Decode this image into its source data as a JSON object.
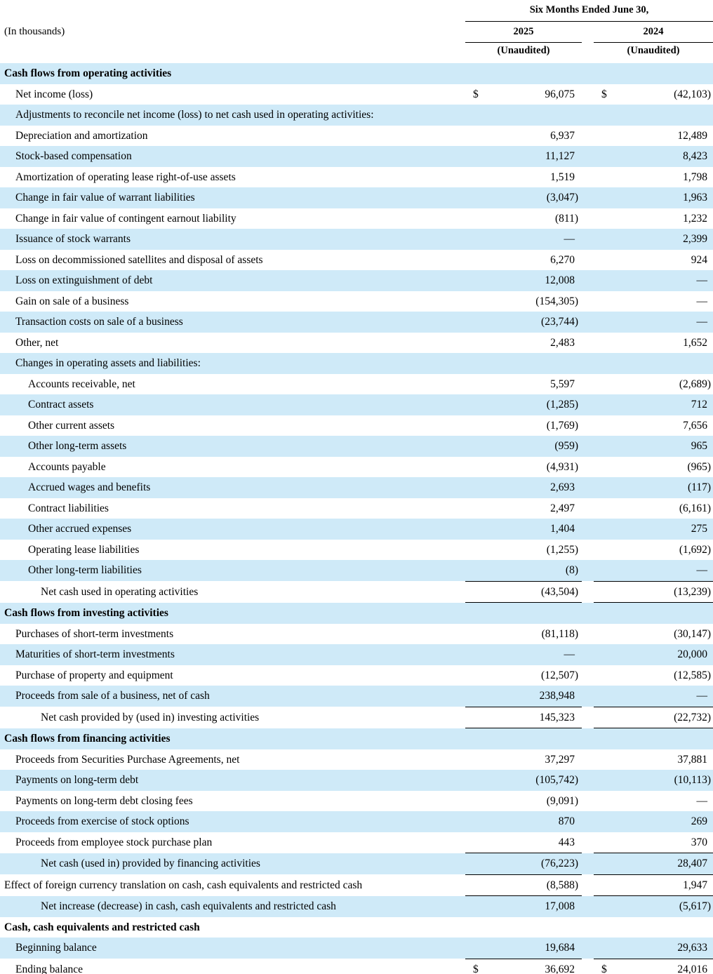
{
  "meta": {
    "in_thousands_label": "(In thousands)"
  },
  "colors": {
    "row_shade": "#cfeaf8",
    "rule": "#000000",
    "text": "#000000",
    "background": "#ffffff"
  },
  "header": {
    "period_title": "Six Months Ended June 30,",
    "columns": [
      {
        "year": "2025",
        "note": "(Unaudited)"
      },
      {
        "year": "2024",
        "note": "(Unaudited)"
      }
    ]
  },
  "table": {
    "rows": [
      {
        "label": "Cash flows from operating activities",
        "indent": 0,
        "bold": true,
        "d1": "",
        "v1": "",
        "d2": "",
        "v2": "",
        "underline": false
      },
      {
        "label": "Net income (loss)",
        "indent": 1,
        "bold": false,
        "d1": "$",
        "v1": "96,075",
        "d2": "$",
        "v2": "(42,103)",
        "underline": false
      },
      {
        "label": "Adjustments to reconcile net income (loss) to net cash used in operating activities:",
        "indent": 1,
        "bold": false,
        "d1": "",
        "v1": "",
        "d2": "",
        "v2": "",
        "underline": false
      },
      {
        "label": "Depreciation and amortization",
        "indent": 1,
        "bold": false,
        "d1": "",
        "v1": "6,937",
        "d2": "",
        "v2": "12,489",
        "underline": false
      },
      {
        "label": "Stock-based compensation",
        "indent": 1,
        "bold": false,
        "d1": "",
        "v1": "11,127",
        "d2": "",
        "v2": "8,423",
        "underline": false
      },
      {
        "label": "Amortization of operating lease right-of-use assets",
        "indent": 1,
        "bold": false,
        "d1": "",
        "v1": "1,519",
        "d2": "",
        "v2": "1,798",
        "underline": false
      },
      {
        "label": "Change in fair value of warrant liabilities",
        "indent": 1,
        "bold": false,
        "d1": "",
        "v1": "(3,047)",
        "d2": "",
        "v2": "1,963",
        "underline": false
      },
      {
        "label": "Change in fair value of contingent earnout liability",
        "indent": 1,
        "bold": false,
        "d1": "",
        "v1": "(811)",
        "d2": "",
        "v2": "1,232",
        "underline": false
      },
      {
        "label": "Issuance of stock warrants",
        "indent": 1,
        "bold": false,
        "d1": "",
        "v1": "—",
        "d2": "",
        "v2": "2,399",
        "underline": false
      },
      {
        "label": "Loss on decommissioned satellites and disposal of assets",
        "indent": 1,
        "bold": false,
        "d1": "",
        "v1": "6,270",
        "d2": "",
        "v2": "924",
        "underline": false
      },
      {
        "label": "Loss on extinguishment of debt",
        "indent": 1,
        "bold": false,
        "d1": "",
        "v1": "12,008",
        "d2": "",
        "v2": "—",
        "underline": false
      },
      {
        "label": "Gain on sale of a business",
        "indent": 1,
        "bold": false,
        "d1": "",
        "v1": "(154,305)",
        "d2": "",
        "v2": "—",
        "underline": false
      },
      {
        "label": "Transaction costs on sale of a business",
        "indent": 1,
        "bold": false,
        "d1": "",
        "v1": "(23,744)",
        "d2": "",
        "v2": "—",
        "underline": false
      },
      {
        "label": "Other, net",
        "indent": 1,
        "bold": false,
        "d1": "",
        "v1": "2,483",
        "d2": "",
        "v2": "1,652",
        "underline": false
      },
      {
        "label": "Changes in operating assets and liabilities:",
        "indent": 1,
        "bold": false,
        "d1": "",
        "v1": "",
        "d2": "",
        "v2": "",
        "underline": false
      },
      {
        "label": "Accounts receivable, net",
        "indent": 2,
        "bold": false,
        "d1": "",
        "v1": "5,597",
        "d2": "",
        "v2": "(2,689)",
        "underline": false
      },
      {
        "label": "Contract assets",
        "indent": 2,
        "bold": false,
        "d1": "",
        "v1": "(1,285)",
        "d2": "",
        "v2": "712",
        "underline": false
      },
      {
        "label": "Other current assets",
        "indent": 2,
        "bold": false,
        "d1": "",
        "v1": "(1,769)",
        "d2": "",
        "v2": "7,656",
        "underline": false
      },
      {
        "label": "Other long-term assets",
        "indent": 2,
        "bold": false,
        "d1": "",
        "v1": "(959)",
        "d2": "",
        "v2": "965",
        "underline": false
      },
      {
        "label": "Accounts payable",
        "indent": 2,
        "bold": false,
        "d1": "",
        "v1": "(4,931)",
        "d2": "",
        "v2": "(965)",
        "underline": false
      },
      {
        "label": "Accrued wages and benefits",
        "indent": 2,
        "bold": false,
        "d1": "",
        "v1": "2,693",
        "d2": "",
        "v2": "(117)",
        "underline": false
      },
      {
        "label": "Contract liabilities",
        "indent": 2,
        "bold": false,
        "d1": "",
        "v1": "2,497",
        "d2": "",
        "v2": "(6,161)",
        "underline": false
      },
      {
        "label": "Other accrued expenses",
        "indent": 2,
        "bold": false,
        "d1": "",
        "v1": "1,404",
        "d2": "",
        "v2": "275",
        "underline": false
      },
      {
        "label": "Operating lease liabilities",
        "indent": 2,
        "bold": false,
        "d1": "",
        "v1": "(1,255)",
        "d2": "",
        "v2": "(1,692)",
        "underline": false
      },
      {
        "label": "Other long-term liabilities",
        "indent": 2,
        "bold": false,
        "d1": "",
        "v1": "(8)",
        "d2": "",
        "v2": "—",
        "underline": true
      },
      {
        "label": "Net cash used in operating activities",
        "indent": 3,
        "bold": false,
        "d1": "",
        "v1": "(43,504)",
        "d2": "",
        "v2": "(13,239)",
        "underline": true
      },
      {
        "label": "Cash flows from investing activities",
        "indent": 0,
        "bold": true,
        "d1": "",
        "v1": "",
        "d2": "",
        "v2": "",
        "underline": false
      },
      {
        "label": "Purchases of short-term investments",
        "indent": 1,
        "bold": false,
        "d1": "",
        "v1": "(81,118)",
        "d2": "",
        "v2": "(30,147)",
        "underline": false
      },
      {
        "label": "Maturities of short-term investments",
        "indent": 1,
        "bold": false,
        "d1": "",
        "v1": "—",
        "d2": "",
        "v2": "20,000",
        "underline": false
      },
      {
        "label": "Purchase of property and equipment",
        "indent": 1,
        "bold": false,
        "d1": "",
        "v1": "(12,507)",
        "d2": "",
        "v2": "(12,585)",
        "underline": false
      },
      {
        "label": "Proceeds from sale of a business, net of cash",
        "indent": 1,
        "bold": false,
        "d1": "",
        "v1": "238,948",
        "d2": "",
        "v2": "—",
        "underline": true
      },
      {
        "label": "Net cash provided by (used in) investing activities",
        "indent": 3,
        "bold": false,
        "d1": "",
        "v1": "145,323",
        "d2": "",
        "v2": "(22,732)",
        "underline": true
      },
      {
        "label": "Cash flows from financing activities",
        "indent": 0,
        "bold": true,
        "d1": "",
        "v1": "",
        "d2": "",
        "v2": "",
        "underline": false
      },
      {
        "label": "Proceeds from Securities Purchase Agreements, net",
        "indent": 1,
        "bold": false,
        "d1": "",
        "v1": "37,297",
        "d2": "",
        "v2": "37,881",
        "underline": false
      },
      {
        "label": "Payments on long-term debt",
        "indent": 1,
        "bold": false,
        "d1": "",
        "v1": "(105,742)",
        "d2": "",
        "v2": "(10,113)",
        "underline": false
      },
      {
        "label": "Payments on long-term debt closing fees",
        "indent": 1,
        "bold": false,
        "d1": "",
        "v1": "(9,091)",
        "d2": "",
        "v2": "—",
        "underline": false
      },
      {
        "label": "Proceeds from exercise of stock options",
        "indent": 1,
        "bold": false,
        "d1": "",
        "v1": "870",
        "d2": "",
        "v2": "269",
        "underline": false
      },
      {
        "label": "Proceeds from employee stock purchase plan",
        "indent": 1,
        "bold": false,
        "d1": "",
        "v1": "443",
        "d2": "",
        "v2": "370",
        "underline": true
      },
      {
        "label": "Net cash (used in) provided by financing activities",
        "indent": 3,
        "bold": false,
        "d1": "",
        "v1": "(76,223)",
        "d2": "",
        "v2": "28,407",
        "underline": true
      },
      {
        "label": "Effect of foreign currency translation on cash, cash equivalents and restricted cash",
        "indent": 0,
        "bold": false,
        "d1": "",
        "v1": "(8,588)",
        "d2": "",
        "v2": "1,947",
        "underline": true
      },
      {
        "label": "Net increase (decrease) in cash, cash equivalents and restricted cash",
        "indent": 3,
        "bold": false,
        "d1": "",
        "v1": "17,008",
        "d2": "",
        "v2": "(5,617)",
        "underline": false
      },
      {
        "label": "Cash, cash equivalents and restricted cash",
        "indent": 0,
        "bold": true,
        "d1": "",
        "v1": "",
        "d2": "",
        "v2": "",
        "underline": false
      },
      {
        "label": "Beginning balance",
        "indent": 1,
        "bold": false,
        "d1": "",
        "v1": "19,684",
        "d2": "",
        "v2": "29,633",
        "underline": true
      },
      {
        "label": "Ending balance",
        "indent": 1,
        "bold": false,
        "d1": "$",
        "v1": "36,692",
        "d2": "$",
        "v2": "24,016",
        "underline": true
      }
    ]
  }
}
